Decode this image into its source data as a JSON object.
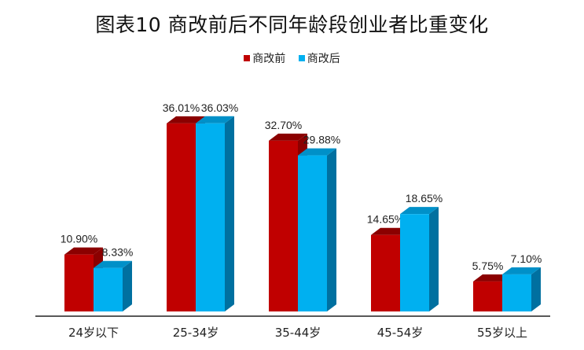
{
  "title": "图表10  商改前后不同年龄段创业者比重变化",
  "legend": [
    {
      "label": "商改前",
      "color": "#C00000"
    },
    {
      "label": "商改后",
      "color": "#00B0F0"
    }
  ],
  "chart_data": {
    "type": "bar",
    "title": "图表10  商改前后不同年龄段创业者比重变化",
    "xlabel": "",
    "ylabel": "",
    "categories": [
      "24岁以下",
      "25-34岁",
      "35-44岁",
      "45-54岁",
      "55岁以上"
    ],
    "series": [
      {
        "name": "商改前",
        "color": "#C00000",
        "values": [
          10.9,
          36.01,
          32.7,
          14.65,
          5.75
        ],
        "labels": [
          "10.90%",
          "36.01%",
          "32.70%",
          "14.65%",
          "5.75%"
        ]
      },
      {
        "name": "商改后",
        "color": "#00B0F0",
        "values": [
          8.33,
          36.03,
          29.88,
          18.65,
          7.1
        ],
        "labels": [
          "8.33%",
          "36.03%",
          "29.88%",
          "18.65%",
          "7.10%"
        ]
      }
    ],
    "ylim": [
      0,
      40
    ],
    "grid": false,
    "legend_position": "top",
    "style": "3d-clustered-column"
  }
}
